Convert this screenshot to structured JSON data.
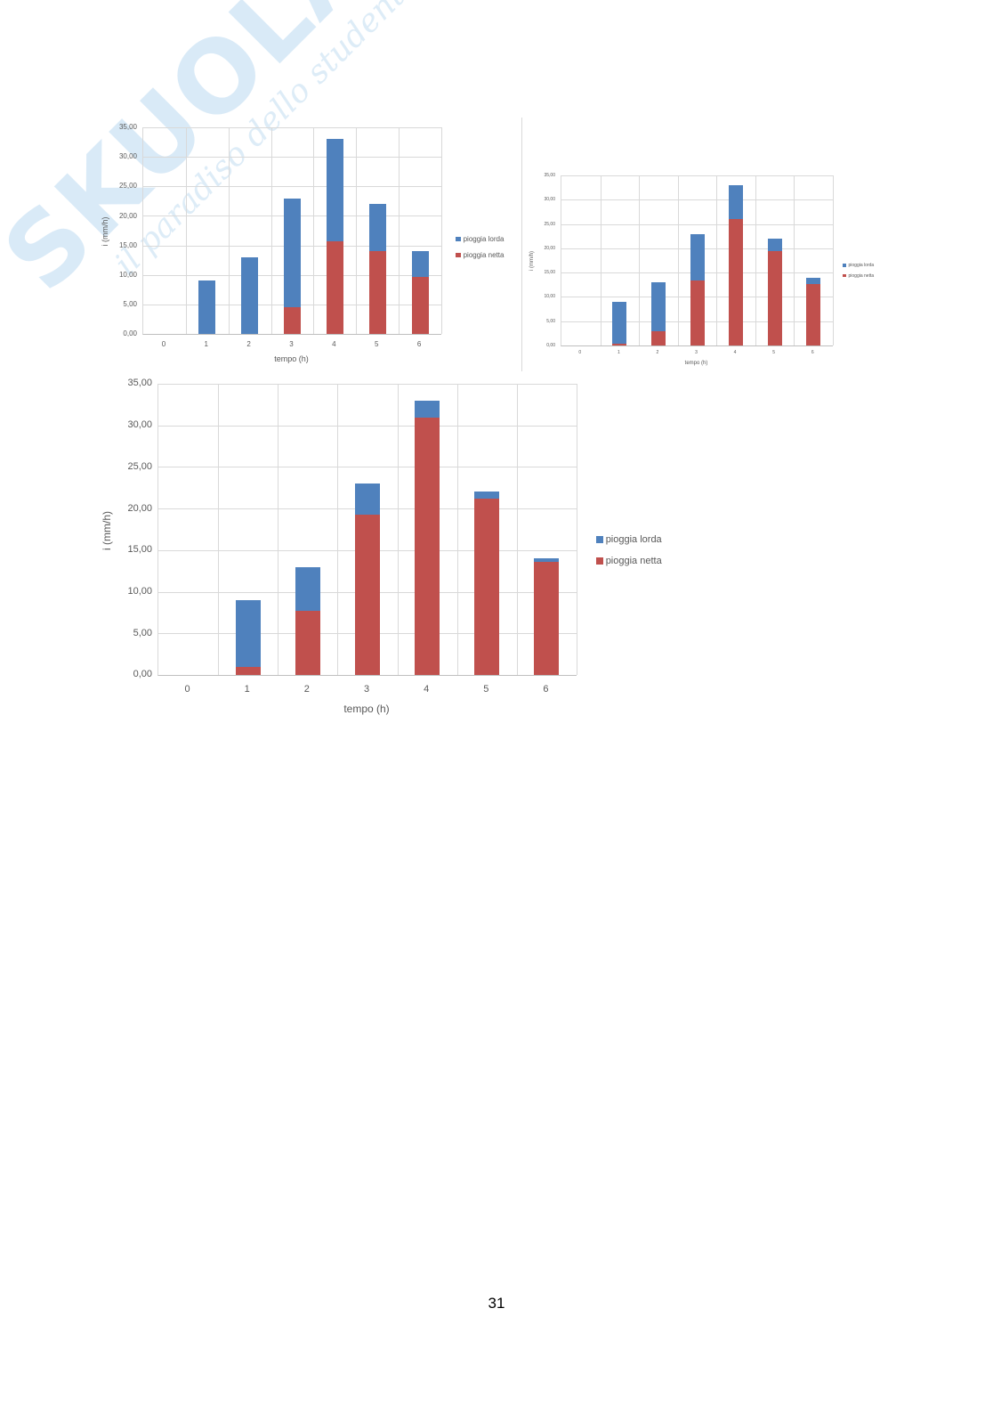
{
  "watermark": {
    "brand": "SKUOLA.net",
    "tagline": "il paradiso dello studente"
  },
  "page": {
    "number": "31"
  },
  "colors": {
    "lorda": "#4f81bd",
    "netta": "#c0504d",
    "grid": "#d9d9d9",
    "text": "#595959"
  },
  "chart_data": [
    {
      "id": "chart-top-left",
      "type": "bar",
      "stacked": true,
      "title": "",
      "xlabel": "tempo (h)",
      "ylabel": "i (mm/h)",
      "categories": [
        "0",
        "1",
        "2",
        "3",
        "4",
        "5",
        "6"
      ],
      "yticks": [
        "0,00",
        "5,00",
        "10,00",
        "15,00",
        "20,00",
        "25,00",
        "30,00",
        "35,00"
      ],
      "ylim": [
        0,
        35
      ],
      "grid": true,
      "legend_position": "right",
      "series": [
        {
          "name": "pioggia netta",
          "color": "#c0504d",
          "values": [
            0,
            0,
            0,
            4.5,
            15.7,
            14.0,
            9.7
          ]
        },
        {
          "name": "pioggia lorda",
          "color": "#4f81bd",
          "values": [
            0,
            9.0,
            13.0,
            18.5,
            17.3,
            8.0,
            4.3
          ]
        }
      ],
      "totals": [
        0,
        9,
        13,
        23,
        33,
        22,
        14
      ]
    },
    {
      "id": "chart-top-right",
      "type": "bar",
      "stacked": true,
      "title": "",
      "xlabel": "tempo (h)",
      "ylabel": "i (mm/h)",
      "categories": [
        "0",
        "1",
        "2",
        "3",
        "4",
        "5",
        "6"
      ],
      "yticks": [
        "0,00",
        "5,00",
        "10,00",
        "15,00",
        "20,00",
        "25,00",
        "30,00",
        "35,00"
      ],
      "ylim": [
        0,
        35
      ],
      "grid": true,
      "legend_position": "right",
      "series": [
        {
          "name": "pioggia netta",
          "color": "#c0504d",
          "values": [
            0,
            0.3,
            3.0,
            13.3,
            26.0,
            19.4,
            12.6
          ]
        },
        {
          "name": "pioggia lorda",
          "color": "#4f81bd",
          "values": [
            0,
            8.7,
            10.0,
            9.7,
            7.0,
            2.6,
            1.4
          ]
        }
      ],
      "totals": [
        0,
        9,
        13,
        23,
        33,
        22,
        14
      ]
    },
    {
      "id": "chart-bottom",
      "type": "bar",
      "stacked": true,
      "title": "",
      "xlabel": "tempo (h)",
      "ylabel": "i (mm/h)",
      "categories": [
        "0",
        "1",
        "2",
        "3",
        "4",
        "5",
        "6"
      ],
      "yticks": [
        "0,00",
        "5,00",
        "10,00",
        "15,00",
        "20,00",
        "25,00",
        "30,00",
        "35,00"
      ],
      "ylim": [
        0,
        35
      ],
      "grid": true,
      "legend_position": "right",
      "series": [
        {
          "name": "pioggia netta",
          "color": "#c0504d",
          "values": [
            0,
            1.0,
            7.7,
            19.3,
            30.9,
            21.2,
            13.6
          ]
        },
        {
          "name": "pioggia lorda",
          "color": "#4f81bd",
          "values": [
            0,
            8.0,
            5.3,
            3.7,
            2.1,
            0.8,
            0.4
          ]
        }
      ],
      "totals": [
        0,
        9,
        13,
        23,
        33,
        22,
        14
      ]
    }
  ],
  "legend": {
    "lorda": "pioggia lorda",
    "netta": "pioggia netta"
  }
}
